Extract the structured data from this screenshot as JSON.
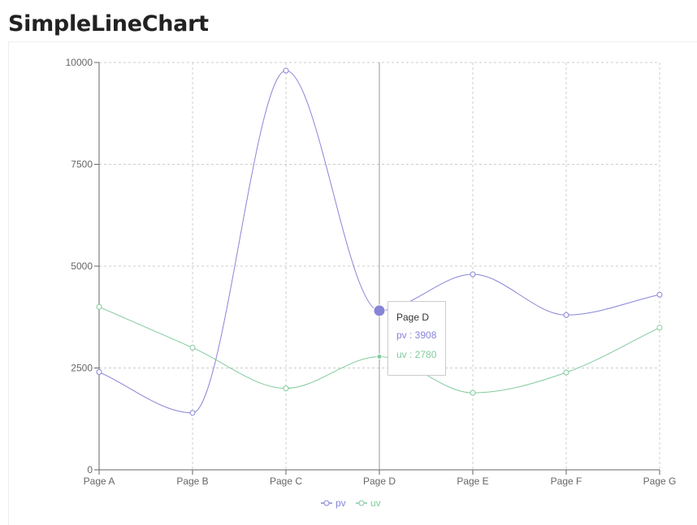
{
  "page": {
    "title": "SimpleLineChart"
  },
  "chart_data": {
    "type": "line",
    "categories": [
      "Page A",
      "Page B",
      "Page C",
      "Page D",
      "Page E",
      "Page F",
      "Page G"
    ],
    "series": [
      {
        "name": "pv",
        "color": "#8884d8",
        "values": [
          2400,
          1398,
          9800,
          3908,
          4800,
          3800,
          4300
        ]
      },
      {
        "name": "uv",
        "color": "#82ca9d",
        "values": [
          4000,
          3000,
          2000,
          2780,
          1890,
          2390,
          3490
        ]
      }
    ],
    "ylim": [
      0,
      10000
    ],
    "yticks": [
      "0",
      "2500",
      "5000",
      "7500",
      "10000"
    ],
    "grid": true,
    "curve": "monotone",
    "legend": "bottom-center",
    "active_category_index": 3,
    "tooltip": {
      "title": "Page D",
      "rows": [
        {
          "label": "pv : 3908",
          "color": "#8884d8"
        },
        {
          "label": "uv : 2780",
          "color": "#82ca9d"
        }
      ]
    }
  }
}
